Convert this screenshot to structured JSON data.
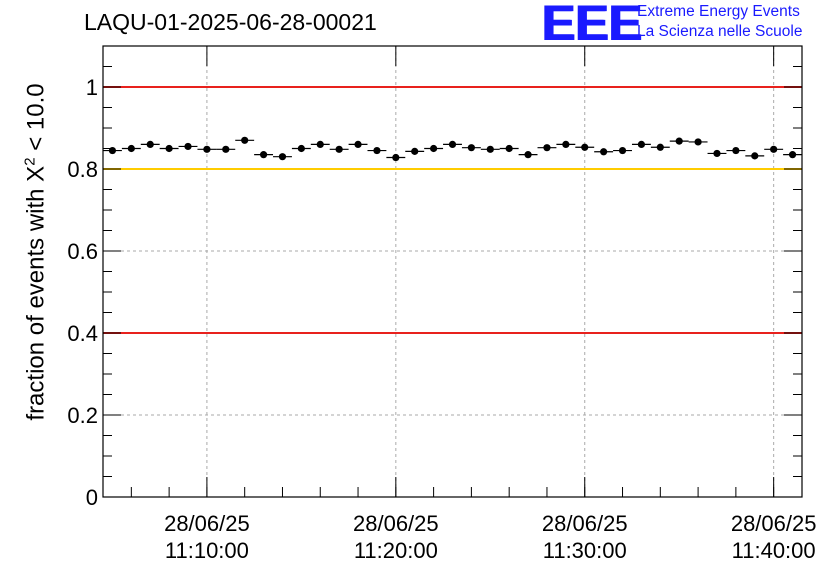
{
  "header": {
    "title": "LAQU-01-2025-06-28-00021",
    "logo_mark": "EEE",
    "logo_line1": "Extreme Energy Events",
    "logo_line2": "La Scienza nelle Scuole"
  },
  "colors": {
    "reference_red": "#e8211d",
    "reference_yellow": "#ffcc00",
    "grid": "#aaaaaa",
    "marker": "#000000",
    "logo_blue": "#1a1aff"
  },
  "chart_data": {
    "type": "scatter",
    "title": "LAQU-01-2025-06-28-00021",
    "ylabel": "fraction of events with X² < 10.0",
    "ylabel_parts": {
      "main": "fraction of events with X",
      "sup": "2",
      "tail": " < 10.0"
    },
    "xlim_min": [
      0,
      37
    ],
    "x_time_axis_note": "x values are minutes after 11:04:30 on 28/06/25",
    "ylim": [
      0,
      1.1
    ],
    "yticks": [
      0,
      0.2,
      0.4,
      0.6,
      0.8,
      1
    ],
    "ytick_labels": [
      "0",
      "0.2",
      "0.4",
      "0.6",
      "0.8",
      "1"
    ],
    "xticks": [
      {
        "x": 5.5,
        "date": "28/06/25",
        "time": "11:10:00"
      },
      {
        "x": 15.5,
        "date": "28/06/25",
        "time": "11:20:00"
      },
      {
        "x": 25.5,
        "date": "28/06/25",
        "time": "11:30:00"
      },
      {
        "x": 35.5,
        "date": "28/06/25",
        "time": "11:40:00"
      }
    ],
    "grid": true,
    "reference_lines": [
      {
        "y": 1.0,
        "color": "red"
      },
      {
        "y": 0.8,
        "color": "yellow"
      },
      {
        "y": 0.4,
        "color": "red"
      }
    ],
    "series": [
      {
        "x": [
          0.5,
          1.5,
          2.5,
          3.5,
          4.5,
          5.5,
          6.5,
          7.5,
          8.5,
          9.5,
          10.5,
          11.5,
          12.5,
          13.5,
          14.5,
          15.5,
          16.5,
          17.5,
          18.5,
          19.5,
          20.5,
          21.5,
          22.5,
          23.5,
          24.5,
          25.5,
          26.5,
          27.5,
          28.5,
          29.5,
          30.5,
          31.5,
          32.5,
          33.5,
          34.5,
          35.5,
          36.5
        ],
        "y": [
          0.845,
          0.85,
          0.86,
          0.85,
          0.855,
          0.848,
          0.848,
          0.87,
          0.835,
          0.83,
          0.85,
          0.86,
          0.848,
          0.86,
          0.845,
          0.828,
          0.843,
          0.85,
          0.86,
          0.852,
          0.848,
          0.85,
          0.835,
          0.852,
          0.86,
          0.853,
          0.842,
          0.845,
          0.86,
          0.853,
          0.868,
          0.866,
          0.838,
          0.845,
          0.832,
          0.848,
          0.835
        ],
        "yerr": [
          0.007,
          0.007,
          0.007,
          0.007,
          0.007,
          0.007,
          0.007,
          0.007,
          0.007,
          0.007,
          0.007,
          0.007,
          0.007,
          0.007,
          0.007,
          0.007,
          0.007,
          0.007,
          0.007,
          0.007,
          0.007,
          0.007,
          0.007,
          0.007,
          0.007,
          0.007,
          0.007,
          0.007,
          0.007,
          0.007,
          0.007,
          0.007,
          0.007,
          0.007,
          0.007,
          0.007,
          0.007
        ],
        "xerr": 0.5
      }
    ]
  }
}
